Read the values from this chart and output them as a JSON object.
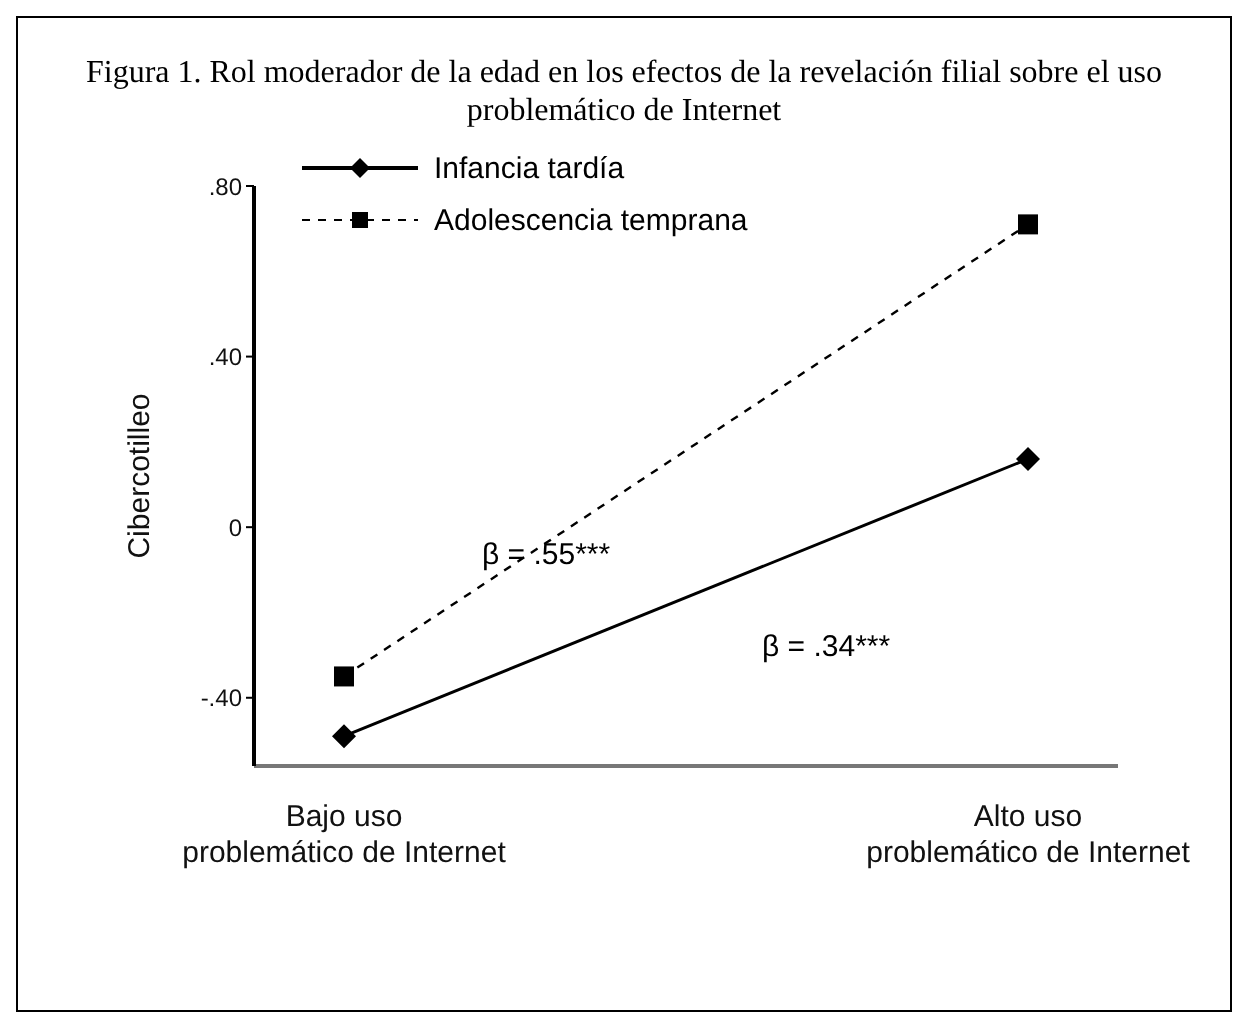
{
  "chart_data": {
    "type": "line",
    "title": "Figura 1. Rol moderador de la edad en los efectos de la revelación filial sobre el uso problemático de Internet",
    "ylabel": "Cibercotilleo",
    "categories": [
      "Bajo uso problemático de Internet",
      "Alto uso problemático de Internet"
    ],
    "series": [
      {
        "name": "Infancia tardía",
        "color": "#000000",
        "values": [
          -0.49,
          0.16
        ],
        "marker": "diamond",
        "line_style": "solid"
      },
      {
        "name": "Adolescencia temprana",
        "color": "#000000",
        "values": [
          -0.35,
          0.71
        ],
        "marker": "square",
        "line_style": "dashed"
      }
    ],
    "ylim": [
      -0.56,
      0.8
    ],
    "yticks": [
      {
        "value": -0.4,
        "label": "-.40"
      },
      0,
      {
        "value": 0.4,
        "label": ".40"
      },
      {
        "value": 0.8,
        "label": ".80"
      }
    ],
    "annotations": [
      "β = .55***",
      "β = .34***"
    ],
    "legend": "top left",
    "grid": false
  }
}
